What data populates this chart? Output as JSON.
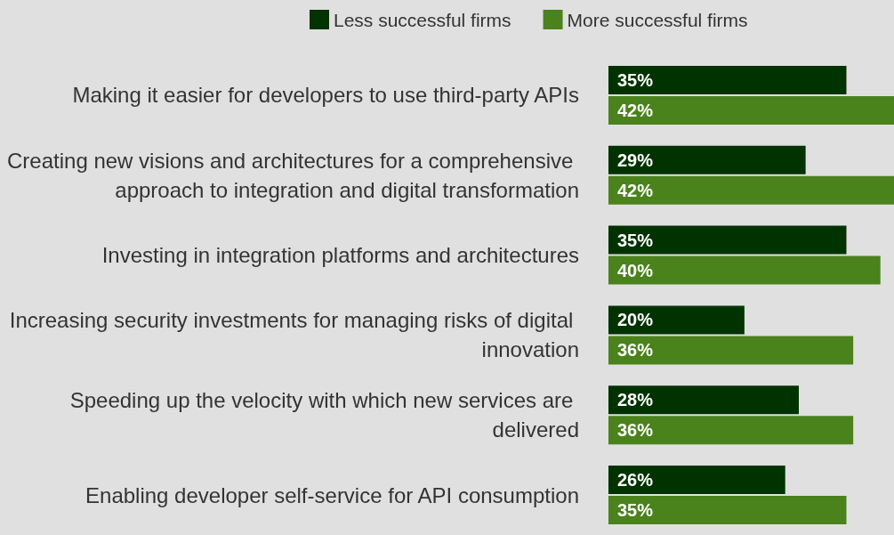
{
  "chart_data": {
    "type": "bar",
    "orientation": "horizontal",
    "legend": "top left",
    "categories": [
      "Making it easier for developers to use third-party APIs",
      "Creating new visions and architectures for a comprehensive approach to integration and digital transformation",
      "Investing in integration platforms and architectures",
      "Increasing security investments for managing risks of digital innovation",
      "Speeding up the velocity with which new services are delivered",
      "Enabling developer self-service for API consumption"
    ],
    "series": [
      {
        "name": "Less successful firms",
        "color": "#003300",
        "values": [
          35,
          29,
          35,
          20,
          28,
          26
        ],
        "value_labels": [
          "35%",
          "29%",
          "35%",
          "20%",
          "28%",
          "26%"
        ]
      },
      {
        "name": "More successful firms",
        "color": "#4a821b",
        "values": [
          42,
          42,
          40,
          36,
          36,
          35
        ],
        "value_labels": [
          "42%",
          "42%",
          "40%",
          "36%",
          "36%",
          "35%"
        ]
      }
    ]
  }
}
